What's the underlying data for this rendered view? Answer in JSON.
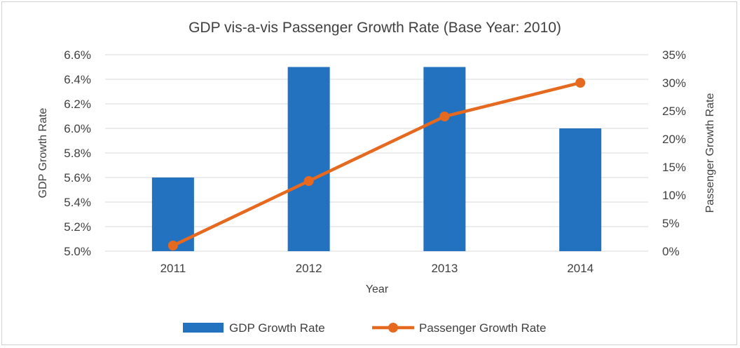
{
  "chart_data": {
    "type": "bar-line-combo",
    "title": "GDP vis-a-vis Passenger Growth Rate (Base Year: 2010)",
    "xlabel": "Year",
    "ylabel_left": "GDP Growth Rate",
    "ylabel_right": "Passenger Growth Rate",
    "categories": [
      "2011",
      "2012",
      "2013",
      "2014"
    ],
    "y_left": {
      "lim": [
        5.0,
        6.6
      ],
      "ticks": [
        5.0,
        5.2,
        5.4,
        5.6,
        5.8,
        6.0,
        6.2,
        6.4,
        6.6
      ],
      "tick_labels": [
        "5.0%",
        "5.2%",
        "5.4%",
        "5.6%",
        "5.8%",
        "6.0%",
        "6.2%",
        "6.4%",
        "6.6%"
      ]
    },
    "y_right": {
      "lim": [
        0,
        35
      ],
      "ticks": [
        0,
        5,
        10,
        15,
        20,
        25,
        30,
        35
      ],
      "tick_labels": [
        "0%",
        "5%",
        "10%",
        "15%",
        "20%",
        "25%",
        "30%",
        "35%"
      ]
    },
    "series": [
      {
        "name": "GDP Growth Rate",
        "type": "bar",
        "axis": "left",
        "color": "#2272bf",
        "values": [
          5.6,
          6.5,
          6.5,
          6.0
        ]
      },
      {
        "name": "Passenger Growth Rate",
        "type": "line",
        "axis": "right",
        "color": "#e5691f",
        "values": [
          1,
          12.5,
          24,
          30
        ]
      }
    ],
    "grid": true,
    "legend": "bottom"
  }
}
